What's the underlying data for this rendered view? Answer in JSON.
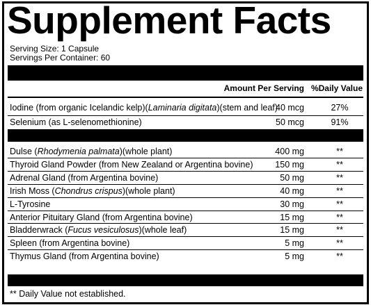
{
  "title": "Supplement Facts",
  "serving_size": "Serving Size: 1 Capsule",
  "servings_per_container": "Servings Per Container: 60",
  "header": {
    "amount": "Amount Per Serving",
    "daily_value": "%Daily Value"
  },
  "groups": [
    {
      "rows": [
        {
          "name": [
            {
              "text": "Iodine (from organic Icelandic kelp)(",
              "italic": false
            },
            {
              "text": "Laminaria digitata",
              "italic": true
            },
            {
              "text": ")(stem and leaf)",
              "italic": false
            }
          ],
          "amount": "40 mcg",
          "daily_value": "27%"
        },
        {
          "name": [
            {
              "text": "Selenium (as L-selenomethionine)",
              "italic": false
            }
          ],
          "amount": "50 mcg",
          "daily_value": "91%"
        }
      ]
    },
    {
      "rows": [
        {
          "name": [
            {
              "text": "Dulse (",
              "italic": false
            },
            {
              "text": "Rhodymenia palmata",
              "italic": true
            },
            {
              "text": ")(whole plant)",
              "italic": false
            }
          ],
          "amount": "400 mg",
          "daily_value": "**"
        },
        {
          "name": [
            {
              "text": "Thyroid Gland Powder (from New Zealand or Argentina bovine)",
              "italic": false
            }
          ],
          "amount": "150 mg",
          "daily_value": "**"
        },
        {
          "name": [
            {
              "text": "Adrenal Gland (from Argentina bovine)",
              "italic": false
            }
          ],
          "amount": "50 mg",
          "daily_value": "**"
        },
        {
          "name": [
            {
              "text": "Irish Moss (",
              "italic": false
            },
            {
              "text": "Chondrus crispus",
              "italic": true
            },
            {
              "text": ")(whole plant)",
              "italic": false
            }
          ],
          "amount": "40 mg",
          "daily_value": "**"
        },
        {
          "name": [
            {
              "text": "L-Tyrosine",
              "italic": false
            }
          ],
          "amount": "30 mg",
          "daily_value": "**"
        },
        {
          "name": [
            {
              "text": "Anterior Pituitary Gland (from Argentina bovine)",
              "italic": false
            }
          ],
          "amount": "15 mg",
          "daily_value": "**"
        },
        {
          "name": [
            {
              "text": "Bladderwrack (",
              "italic": false
            },
            {
              "text": "Fucus vesiculosus",
              "italic": true
            },
            {
              "text": ")(whole leaf)",
              "italic": false
            }
          ],
          "amount": "15 mg",
          "daily_value": "**"
        },
        {
          "name": [
            {
              "text": "Spleen (from Argentina bovine)",
              "italic": false
            }
          ],
          "amount": "5 mg",
          "daily_value": "**"
        },
        {
          "name": [
            {
              "text": "Thymus Gland (from Argentina bovine)",
              "italic": false
            }
          ],
          "amount": "5 mg",
          "daily_value": "**"
        }
      ]
    }
  ],
  "footnote": "** Daily Value not established."
}
